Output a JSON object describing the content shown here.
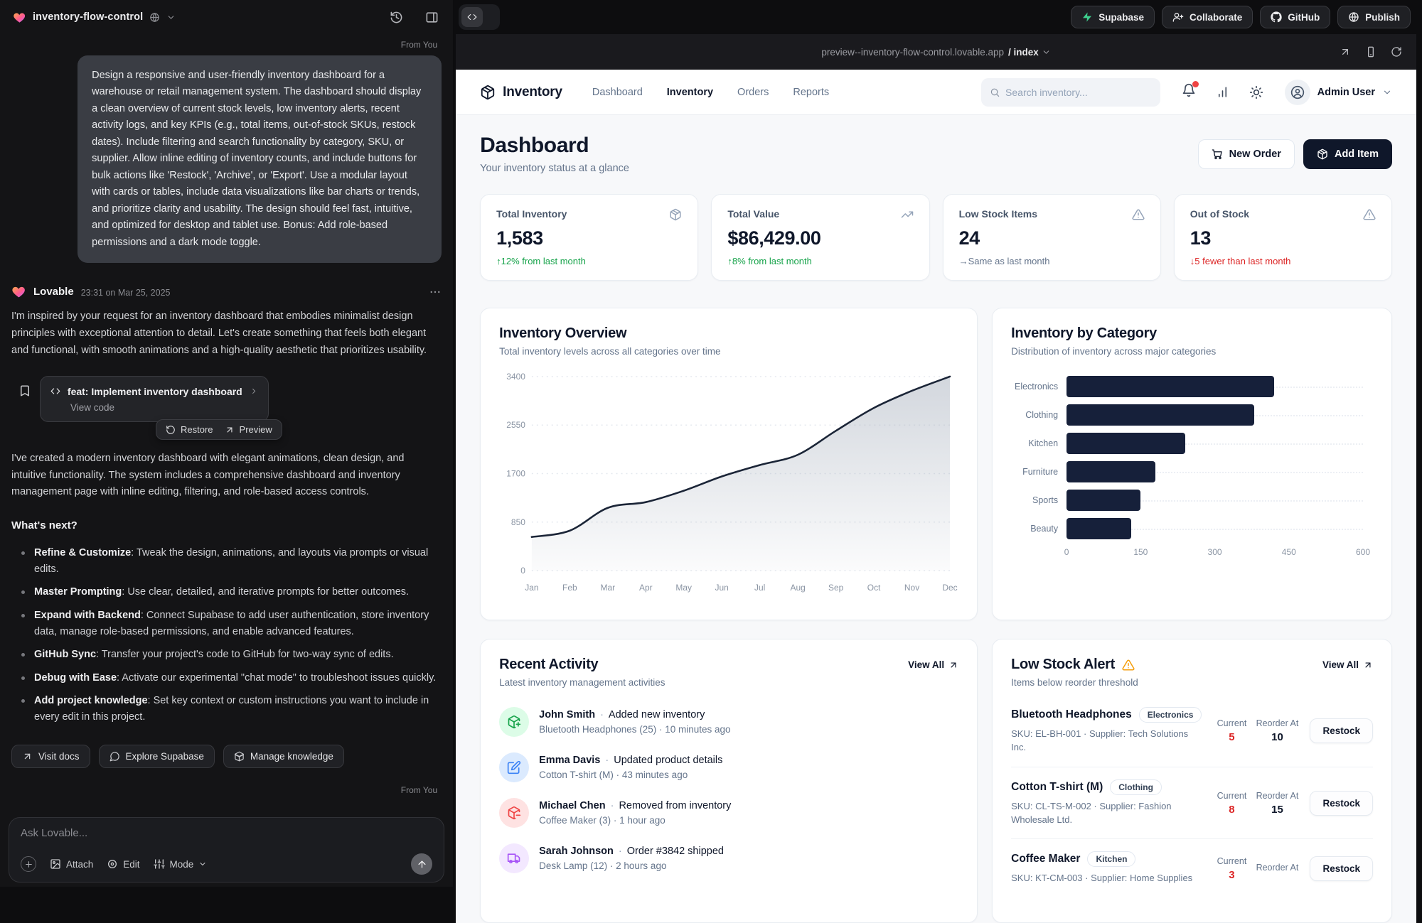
{
  "app": {
    "project_name": "inventory-flow-control",
    "from_you_label": "From You",
    "topbar_actions": [
      {
        "id": "supabase",
        "label": "Supabase"
      },
      {
        "id": "collaborate",
        "label": "Collaborate"
      },
      {
        "id": "github",
        "label": "GitHub"
      },
      {
        "id": "publish",
        "label": "Publish"
      }
    ]
  },
  "chat": {
    "user_prompt": "Design a responsive and user-friendly inventory dashboard for a warehouse or retail management system. The dashboard should display a clean overview of current stock levels, low inventory alerts, recent activity logs, and key KPIs (e.g., total items, out-of-stock SKUs, restock dates). Include filtering and search functionality by category, SKU, or supplier. Allow inline editing of inventory counts, and include buttons for bulk actions like 'Restock', 'Archive', or 'Export'. Use a modular layout with cards or tables, include data visualizations like bar charts or trends, and prioritize clarity and usability. The design should feel fast, intuitive, and optimized for desktop and tablet use. Bonus: Add role-based permissions and a dark mode toggle.",
    "assistant": {
      "name": "Lovable",
      "timestamp": "23:31 on Mar 25, 2025",
      "intro": "I'm inspired by your request for an inventory dashboard that embodies minimalist design principles with exceptional attention to detail. Let's create something that feels both elegant and functional, with smooth animations and a high-quality aesthetic that prioritizes usability.",
      "version_card": {
        "title": "feat: Implement inventory dashboard",
        "view_code": "View code",
        "restore": "Restore",
        "preview": "Preview"
      },
      "summary": "I've created a modern inventory dashboard with elegant animations, clean design, and intuitive functionality. The system includes a comprehensive dashboard and inventory management page with inline editing, filtering, and role-based access controls.",
      "whats_next_title": "What's next?",
      "next_steps": [
        {
          "title": "Refine & Customize",
          "text": "Tweak the design, animations, and layouts via prompts or visual edits."
        },
        {
          "title": "Master Prompting",
          "text": "Use clear, detailed, and iterative prompts for better outcomes."
        },
        {
          "title": "Expand with Backend",
          "text": "Connect Supabase to add user authentication, store inventory data, manage role-based permissions, and enable advanced features."
        },
        {
          "title": "GitHub Sync",
          "text": "Transfer your project's code to GitHub for two-way sync of edits."
        },
        {
          "title": "Debug with Ease",
          "text": "Activate our experimental \"chat mode\" to troubleshoot issues quickly."
        },
        {
          "title": "Add project knowledge",
          "text": "Set key context or custom instructions you want to include in every edit in this project."
        }
      ],
      "quick_actions": [
        {
          "id": "visit-docs",
          "label": "Visit docs"
        },
        {
          "id": "explore-supabase",
          "label": "Explore Supabase"
        },
        {
          "id": "manage-knowledge",
          "label": "Manage knowledge"
        }
      ]
    },
    "composer": {
      "placeholder": "Ask Lovable...",
      "attach": "Attach",
      "edit": "Edit",
      "mode": "Mode"
    }
  },
  "preview": {
    "url": "preview--inventory-flow-control.lovable.app",
    "path": "/ index",
    "site": {
      "brand": "Inventory",
      "nav": [
        {
          "label": "Dashboard",
          "active": false
        },
        {
          "label": "Inventory",
          "active": true
        },
        {
          "label": "Orders",
          "active": false
        },
        {
          "label": "Reports",
          "active": false
        }
      ],
      "search_placeholder": "Search inventory...",
      "user_name": "Admin User",
      "page_title": "Dashboard",
      "page_subtitle": "Your inventory status at a glance",
      "new_order_label": "New Order",
      "add_item_label": "Add Item",
      "kpis": [
        {
          "label": "Total Inventory",
          "value": "1,583",
          "arrow": "↑",
          "delta": "12% from last month",
          "trend": "up",
          "icon": "package"
        },
        {
          "label": "Total Value",
          "value": "$86,429.00",
          "arrow": "↑",
          "delta": "8% from last month",
          "trend": "up",
          "icon": "trending-up"
        },
        {
          "label": "Low Stock Items",
          "value": "24",
          "arrow": "→",
          "delta": "Same as last month",
          "trend": "flat",
          "icon": "alert-triangle"
        },
        {
          "label": "Out of Stock",
          "value": "13",
          "arrow": "↓",
          "delta": "5 fewer than last month",
          "trend": "down",
          "icon": "alert-triangle"
        }
      ],
      "recent_activity": {
        "title": "Recent Activity",
        "subtitle": "Latest inventory management activities",
        "view_all": "View All",
        "separator": "·",
        "items": [
          {
            "user": "John Smith",
            "action": "Added new inventory",
            "detail": "Bluetooth Headphones (25) · 10 minutes ago",
            "kind": "add"
          },
          {
            "user": "Emma Davis",
            "action": "Updated product details",
            "detail": "Cotton T-shirt (M) · 43 minutes ago",
            "kind": "edit"
          },
          {
            "user": "Michael Chen",
            "action": "Removed from inventory",
            "detail": "Coffee Maker (3) · 1 hour ago",
            "kind": "remove"
          },
          {
            "user": "Sarah Johnson",
            "action": "Order #3842 shipped",
            "detail": "Desk Lamp (12) · 2 hours ago",
            "kind": "ship"
          }
        ]
      },
      "low_stock": {
        "title": "Low Stock Alert",
        "subtitle": "Items below reorder threshold",
        "view_all": "View All",
        "current_label": "Current",
        "reorder_label": "Reorder At",
        "restock_label": "Restock",
        "items": [
          {
            "name": "Bluetooth Headphones",
            "category": "Electronics",
            "detail": "SKU: EL-BH-001 · Supplier: Tech Solutions Inc.",
            "current": "5",
            "reorder_at": "10"
          },
          {
            "name": "Cotton T-shirt (M)",
            "category": "Clothing",
            "detail": "SKU: CL-TS-M-002 · Supplier: Fashion Wholesale Ltd.",
            "current": "8",
            "reorder_at": "15"
          },
          {
            "name": "Coffee Maker",
            "category": "Kitchen",
            "detail": "SKU: KT-CM-003 · Supplier: Home Supplies",
            "current": "3",
            "reorder_at": ""
          }
        ]
      }
    }
  },
  "chart_data": [
    {
      "type": "area",
      "title": "Inventory Overview",
      "subtitle": "Total inventory levels across all categories over time",
      "x": [
        "Jan",
        "Feb",
        "Mar",
        "Apr",
        "May",
        "Jun",
        "Jul",
        "Aug",
        "Sep",
        "Oct",
        "Nov",
        "Dec"
      ],
      "values": [
        590,
        700,
        1100,
        1200,
        1400,
        1650,
        1850,
        2030,
        2450,
        2850,
        3150,
        3400
      ],
      "yticks": [
        0,
        850,
        1700,
        2550,
        3400
      ],
      "ylim": [
        0,
        3400
      ],
      "grid": "horizontal-dashed",
      "legend": "none",
      "line_color": "#1b2537",
      "fill": "gray-gradient"
    },
    {
      "type": "bar",
      "orientation": "horizontal",
      "title": "Inventory by Category",
      "subtitle": "Distribution of inventory across major categories",
      "categories": [
        "Electronics",
        "Clothing",
        "Kitchen",
        "Furniture",
        "Sports",
        "Beauty"
      ],
      "values": [
        420,
        380,
        240,
        180,
        150,
        130
      ],
      "xticks": [
        0,
        150,
        300,
        450,
        600
      ],
      "xlim": [
        0,
        600
      ],
      "grid": "row-dotted",
      "legend": "none",
      "bar_color": "#16203a"
    }
  ]
}
